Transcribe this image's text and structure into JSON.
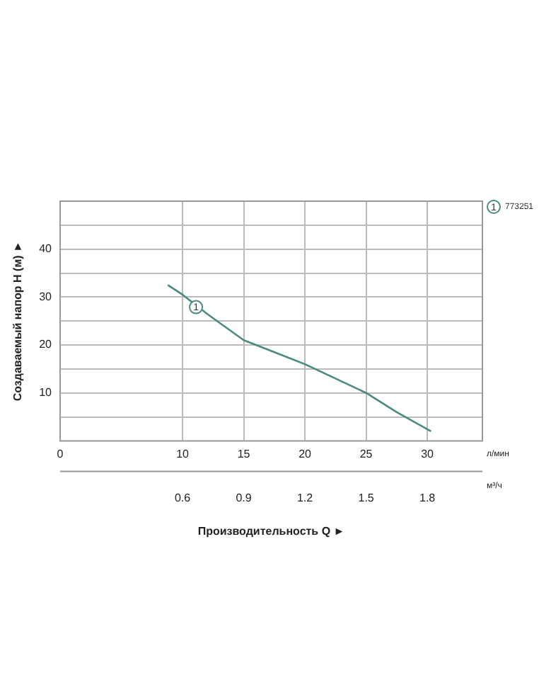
{
  "chart_data": {
    "type": "line",
    "xlabel": "Производительность Q ►",
    "ylabel": "Создаваемый напор H (м) ►",
    "xlim": [
      0,
      34.5
    ],
    "xticks": [
      0,
      10,
      15,
      20,
      25,
      30
    ],
    "x2lim": [
      0,
      2.07
    ],
    "x2ticks": [
      0.6,
      0.9,
      1.2,
      1.5,
      1.8
    ],
    "ylim": [
      0,
      50
    ],
    "yticks": [
      {
        "value": 5,
        "label": null
      },
      10,
      {
        "value": 15,
        "label": null
      },
      20,
      {
        "value": 25,
        "label": null
      },
      30,
      {
        "value": 35,
        "label": null
      },
      40,
      {
        "value": 45,
        "label": null
      }
    ],
    "series": [
      {
        "name": "773251",
        "color": "#4a8a80",
        "x": [
          8.8,
          10,
          12,
          15,
          17,
          20,
          22.5,
          25,
          27.5,
          30.3
        ],
        "values": [
          32.5,
          30.5,
          26.5,
          21,
          19,
          16,
          13,
          10,
          6,
          2
        ]
      }
    ],
    "annotations": [
      {
        "text": "1",
        "x": 11.1,
        "y": 27.9
      },
      "л/мин",
      "м³/ч"
    ],
    "grid": true,
    "legend": "top right",
    "marker": "none",
    "line_style": "solid"
  }
}
